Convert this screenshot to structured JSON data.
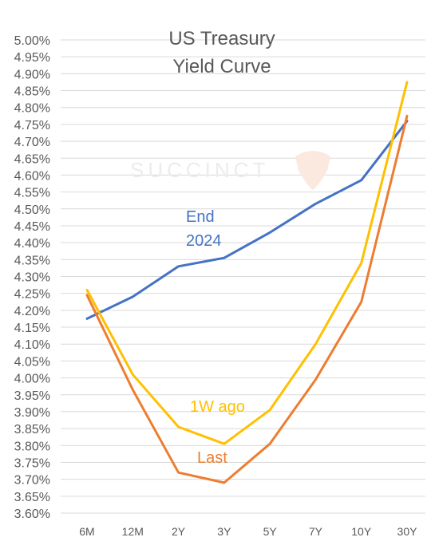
{
  "chart_data": {
    "type": "line",
    "title": [
      "US Treasury",
      "Yield Curve"
    ],
    "watermark": "SUCCINCT",
    "categories": [
      "6M",
      "12M",
      "2Y",
      "3Y",
      "5Y",
      "7Y",
      "10Y",
      "30Y"
    ],
    "ylim": [
      3.6,
      5.0
    ],
    "ytick_step": 0.05,
    "ytick_labels": [
      "5.00%",
      "4.95%",
      "4.90%",
      "4.85%",
      "4.80%",
      "4.75%",
      "4.70%",
      "4.65%",
      "4.60%",
      "4.55%",
      "4.50%",
      "4.45%",
      "4.40%",
      "4.35%",
      "4.30%",
      "4.25%",
      "4.20%",
      "4.15%",
      "4.10%",
      "4.05%",
      "4.00%",
      "3.95%",
      "3.90%",
      "3.85%",
      "3.80%",
      "3.75%",
      "3.70%",
      "3.65%",
      "3.60%"
    ],
    "grid": true,
    "legend": "inline labels",
    "series": [
      {
        "name": "End 2024",
        "label_lines": [
          "End",
          "2024"
        ],
        "color": "#4472c4",
        "values": [
          4.175,
          4.24,
          4.33,
          4.355,
          4.43,
          4.515,
          4.585,
          4.76
        ]
      },
      {
        "name": "1W ago",
        "label_lines": [
          "1W ago"
        ],
        "color": "#ffc000",
        "values": [
          4.26,
          4.01,
          3.855,
          3.805,
          3.905,
          4.1,
          4.34,
          4.875
        ]
      },
      {
        "name": "Last",
        "label_lines": [
          "Last"
        ],
        "color": "#ed7d31",
        "values": [
          4.245,
          3.965,
          3.72,
          3.69,
          3.805,
          3.995,
          4.225,
          4.775
        ]
      }
    ]
  }
}
